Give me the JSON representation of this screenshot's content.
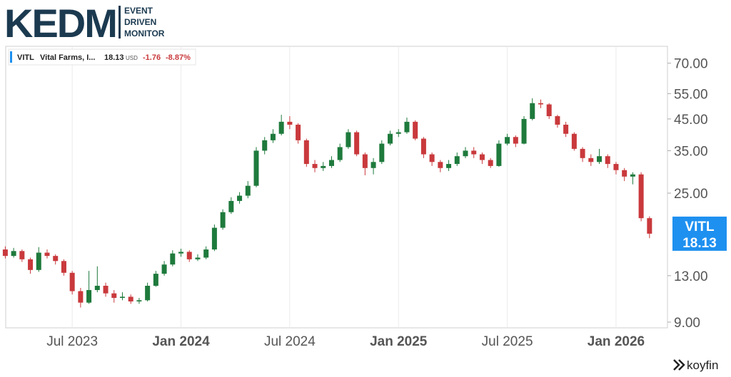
{
  "branding": {
    "logo": "KEDM",
    "tagline": [
      "EVENT",
      "DRIVEN",
      "MONITOR"
    ],
    "source": "koyfin"
  },
  "chart_data": {
    "type": "candlestick",
    "ticker": "VITL",
    "name": "Vital Farms, I...",
    "currency": "USD",
    "change": -1.76,
    "change_pct": {
      "value": -8.87,
      "label": "-8.87%"
    },
    "log_scale": true,
    "grid": "vertical",
    "up_color": "#1e7a3c",
    "down_color": "#c9393c",
    "tag_color": "#1e90f0",
    "categories": [
      null,
      null,
      null,
      null,
      null,
      null,
      null,
      null,
      "Jul 2023",
      null,
      null,
      null,
      null,
      null,
      null,
      null,
      null,
      null,
      null,
      null,
      null,
      "Jan 2024",
      null,
      null,
      null,
      null,
      null,
      null,
      null,
      null,
      null,
      null,
      null,
      null,
      "Jul 2024",
      null,
      null,
      null,
      null,
      null,
      null,
      null,
      null,
      null,
      null,
      null,
      null,
      "Jan 2025",
      null,
      null,
      null,
      null,
      null,
      null,
      null,
      null,
      null,
      null,
      null,
      null,
      "Jul 2025",
      null,
      null,
      null,
      null,
      null,
      null,
      null,
      null,
      null,
      null,
      null,
      null,
      "Jan 2026",
      null,
      null,
      null,
      null
    ],
    "open": [
      16.0,
      15.2,
      15.8,
      14.8,
      13.6,
      15.6,
      15.2,
      14.6,
      13.3,
      11.5,
      10.5,
      11.6,
      12.0,
      11.3,
      10.9,
      11.0,
      10.6,
      10.7,
      12.0,
      13.2,
      14.2,
      15.5,
      15.7,
      14.8,
      15.0,
      16.0,
      19.0,
      21.5,
      23.5,
      24.5,
      26.5,
      35.0,
      38.0,
      40.0,
      44.0,
      43.0,
      38.0,
      31.5,
      30.5,
      31.0,
      32.5,
      36.0,
      40.5,
      34.0,
      30.5,
      32.0,
      37.0,
      40.0,
      40.5,
      44.0,
      38.5,
      34.0,
      32.0,
      30.5,
      31.5,
      33.5,
      35.0,
      34.0,
      32.5,
      31.0,
      37.0,
      39.0,
      37.0,
      45.0,
      51.0,
      50.5,
      46.0,
      43.0,
      40.0,
      35.5,
      33.0,
      32.0,
      33.5,
      31.5,
      30.0,
      28.5,
      29.0,
      20.5
    ],
    "high": [
      16.4,
      16.2,
      16.0,
      15.0,
      16.3,
      16.0,
      15.4,
      14.8,
      13.5,
      11.8,
      13.5,
      14.0,
      12.3,
      11.6,
      11.4,
      11.2,
      10.9,
      12.3,
      13.5,
      14.6,
      15.9,
      16.1,
      15.9,
      15.4,
      16.4,
      19.5,
      22.0,
      24.2,
      25.2,
      27.5,
      36.0,
      39.0,
      41.5,
      46.5,
      46.0,
      43.5,
      38.5,
      32.5,
      32.0,
      33.5,
      37.0,
      41.5,
      41.0,
      34.5,
      33.0,
      38.0,
      41.0,
      41.5,
      45.5,
      44.5,
      39.0,
      34.5,
      32.5,
      32.5,
      34.5,
      36.0,
      36.0,
      34.5,
      33.0,
      38.0,
      40.0,
      39.5,
      46.0,
      53.0,
      52.5,
      51.0,
      46.5,
      44.0,
      40.5,
      36.0,
      34.0,
      35.5,
      34.0,
      32.0,
      30.5,
      29.5,
      29.5,
      20.8
    ],
    "low": [
      14.9,
      15.0,
      14.5,
      13.2,
      13.4,
      14.9,
      14.2,
      13.0,
      11.2,
      10.1,
      10.4,
      11.4,
      11.0,
      10.5,
      10.7,
      10.4,
      10.4,
      10.6,
      11.9,
      13.0,
      14.0,
      15.1,
      14.5,
      14.6,
      14.8,
      15.8,
      18.7,
      21.2,
      23.0,
      24.0,
      26.2,
      34.0,
      37.2,
      39.5,
      41.5,
      37.0,
      30.8,
      29.5,
      29.8,
      30.5,
      32.0,
      35.5,
      33.5,
      28.8,
      29.0,
      31.5,
      36.5,
      39.0,
      40.0,
      38.0,
      33.0,
      31.0,
      29.5,
      29.8,
      31.0,
      33.0,
      33.0,
      31.5,
      30.5,
      30.8,
      36.5,
      36.0,
      36.8,
      44.5,
      49.0,
      45.0,
      42.0,
      39.0,
      35.0,
      32.0,
      31.0,
      31.5,
      30.5,
      29.0,
      27.5,
      26.8,
      20.0,
      17.5
    ],
    "close": [
      15.2,
      15.8,
      14.8,
      13.6,
      15.6,
      15.2,
      14.6,
      13.3,
      11.5,
      10.5,
      11.6,
      12.0,
      11.3,
      10.9,
      11.0,
      10.6,
      10.7,
      12.0,
      13.2,
      14.2,
      15.5,
      15.7,
      14.8,
      15.0,
      16.0,
      19.0,
      21.5,
      23.5,
      24.5,
      26.5,
      35.0,
      38.0,
      40.0,
      44.0,
      43.0,
      38.0,
      31.5,
      30.5,
      31.0,
      32.5,
      36.0,
      40.5,
      34.0,
      30.5,
      32.0,
      37.0,
      40.0,
      40.5,
      44.0,
      38.5,
      34.0,
      32.0,
      30.5,
      31.5,
      33.5,
      35.0,
      34.0,
      32.5,
      31.0,
      37.0,
      39.0,
      37.0,
      45.0,
      51.0,
      50.5,
      46.0,
      43.0,
      40.0,
      35.5,
      33.0,
      32.0,
      33.5,
      31.5,
      30.0,
      28.5,
      29.0,
      20.5,
      18.13
    ],
    "ylim": [
      8.6,
      80
    ],
    "yticks": [
      {
        "value": 9,
        "label": "9.00"
      },
      {
        "value": 13,
        "label": "13.00"
      },
      {
        "value": 25,
        "label": "25.00"
      },
      {
        "value": 35,
        "label": "35.00"
      },
      {
        "value": 45,
        "label": "45.00"
      },
      {
        "value": 55,
        "label": "55.00"
      },
      {
        "value": 70,
        "label": "70.00"
      }
    ]
  }
}
